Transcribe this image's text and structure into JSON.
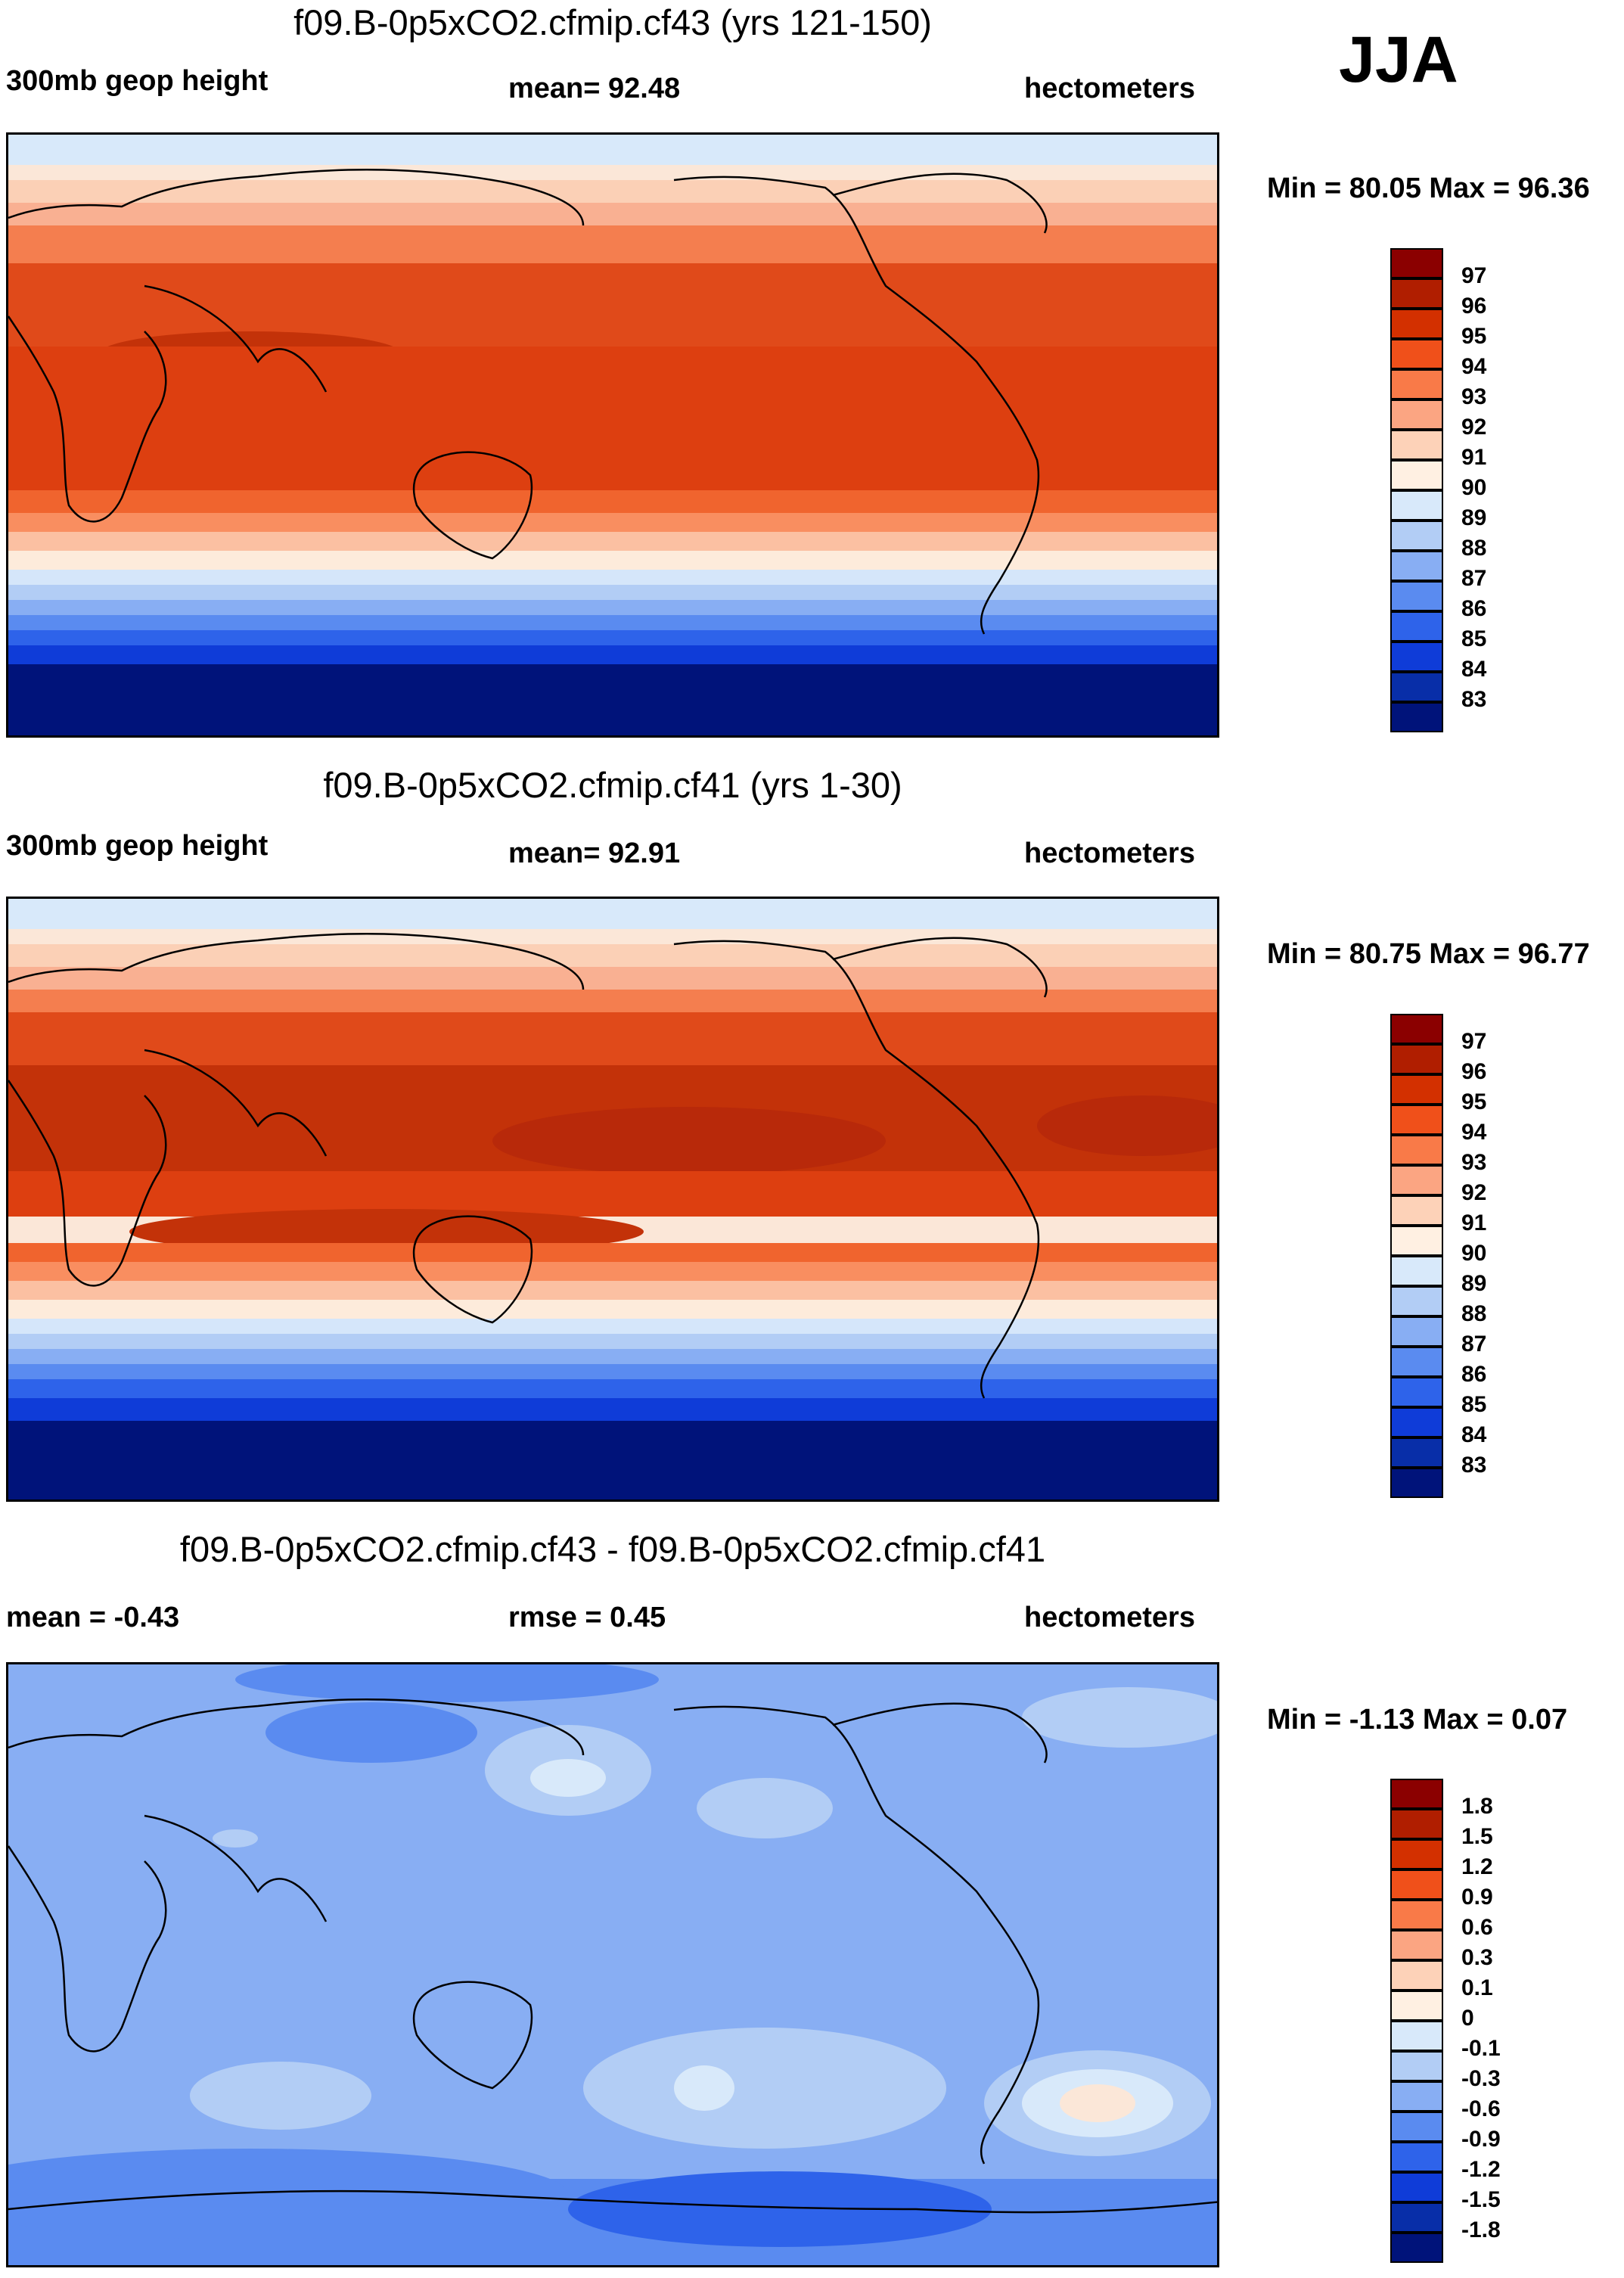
{
  "season": "JJA",
  "panels": [
    {
      "title": "f09.B-0p5xCO2.cfmip.cf43 (yrs 121-150)",
      "left_label": "300mb geop height",
      "center_label": "mean=  92.48",
      "right_label": "hectometers",
      "minmax": "Min =  80.05 Max =  96.36",
      "levels": [
        "97",
        "96",
        "95",
        "94",
        "93",
        "92",
        "91",
        "90",
        "89",
        "88",
        "87",
        "86",
        "85",
        "84",
        "83"
      ]
    },
    {
      "title": "f09.B-0p5xCO2.cfmip.cf41 (yrs 1-30)",
      "left_label": "300mb geop height",
      "center_label": "mean=  92.91",
      "right_label": "hectometers",
      "minmax": "Min =  80.75 Max =  96.77",
      "levels": [
        "97",
        "96",
        "95",
        "94",
        "93",
        "92",
        "91",
        "90",
        "89",
        "88",
        "87",
        "86",
        "85",
        "84",
        "83"
      ]
    },
    {
      "title": "f09.B-0p5xCO2.cfmip.cf43 - f09.B-0p5xCO2.cfmip.cf41",
      "left_label": "mean =  -0.43",
      "center_label": "rmse =   0.45",
      "right_label": "hectometers",
      "minmax": "Min =  -1.13 Max =   0.07",
      "levels": [
        "1.8",
        "1.5",
        "1.2",
        "0.9",
        "0.6",
        "0.3",
        "0.1",
        "0",
        "-0.1",
        "-0.3",
        "-0.6",
        "-0.9",
        "-1.2",
        "-1.5",
        "-1.8"
      ]
    }
  ],
  "colorbar_colors": [
    "#8b0000",
    "#b01e00",
    "#d33000",
    "#f0501a",
    "#f97a48",
    "#fba582",
    "#fdd2b8",
    "#fff0e2",
    "#d8e9fa",
    "#b2cdf5",
    "#88aef3",
    "#5a8bf0",
    "#2e63ea",
    "#0f3cd8",
    "#082ea8",
    "#00137a"
  ]
}
